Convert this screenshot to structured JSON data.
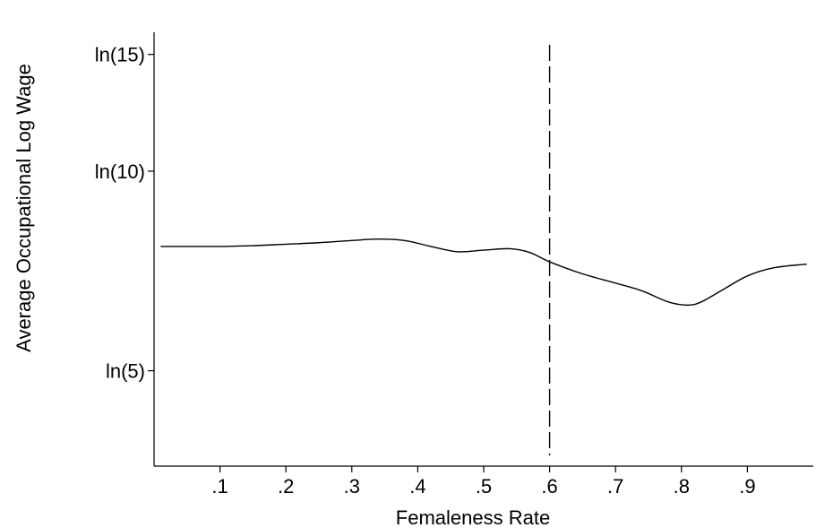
{
  "chart_data": {
    "type": "line",
    "title": "",
    "xlabel": "Femaleness Rate",
    "ylabel": "Average Occupational Log Wage",
    "y_scale": "log",
    "xlim": [
      0.0,
      1.0
    ],
    "ylim": [
      3.59,
      16.2
    ],
    "x_ticks": [
      {
        "value": 0.1,
        "label": ".1"
      },
      {
        "value": 0.2,
        "label": ".2"
      },
      {
        "value": 0.3,
        "label": ".3"
      },
      {
        "value": 0.4,
        "label": ".4"
      },
      {
        "value": 0.5,
        "label": ".5"
      },
      {
        "value": 0.6,
        "label": ".6"
      },
      {
        "value": 0.7,
        "label": ".7"
      },
      {
        "value": 0.8,
        "label": ".8"
      },
      {
        "value": 0.9,
        "label": ".9"
      }
    ],
    "y_ticks": [
      {
        "value": 5,
        "label": "ln(5)"
      },
      {
        "value": 10,
        "label": "ln(10)"
      },
      {
        "value": 15,
        "label": "ln(15)"
      }
    ],
    "reference_line": {
      "x": 0.6,
      "style": "dashed"
    },
    "grid": false,
    "legend": "none",
    "series": [
      {
        "x": [
          0.01,
          0.05,
          0.1,
          0.15,
          0.2,
          0.25,
          0.3,
          0.34,
          0.38,
          0.42,
          0.46,
          0.5,
          0.54,
          0.57,
          0.6,
          0.65,
          0.7,
          0.74,
          0.78,
          0.81,
          0.83,
          0.86,
          0.9,
          0.94,
          0.99
        ],
        "y": [
          7.7,
          7.7,
          7.7,
          7.72,
          7.76,
          7.8,
          7.86,
          7.9,
          7.86,
          7.7,
          7.56,
          7.6,
          7.64,
          7.54,
          7.3,
          7.0,
          6.78,
          6.6,
          6.35,
          6.28,
          6.35,
          6.6,
          6.95,
          7.15,
          7.24
        ]
      }
    ]
  }
}
